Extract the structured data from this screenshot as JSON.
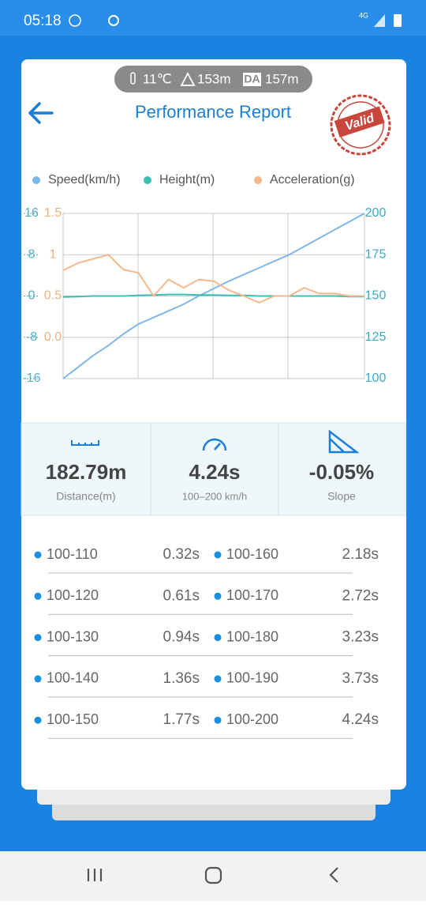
{
  "status_bar": {
    "time": "05:18",
    "network": "4G"
  },
  "conditions": {
    "temperature": "11℃",
    "altitude": "153m",
    "da_label": "DA",
    "density_altitude": "157m"
  },
  "header": {
    "title": "Performance Report",
    "stamp": "Valid"
  },
  "chart_data": {
    "type": "line",
    "series": [
      {
        "name": "Speed(km/h)",
        "color": "#7fb8e8",
        "axis": "y2",
        "values": [
          100,
          107,
          114,
          120,
          127,
          133,
          137,
          141,
          145,
          150,
          154.5,
          159,
          163,
          167,
          171,
          175,
          180,
          185,
          190,
          195,
          200
        ]
      },
      {
        "name": "Height(m)",
        "color": "#3cbfb5",
        "axis": "y",
        "values": [
          -0.2,
          -0.1,
          0,
          0,
          0,
          0.1,
          0.2,
          0.3,
          0.3,
          0.2,
          0.2,
          0.1,
          0.1,
          0,
          0,
          0,
          0,
          0,
          0,
          -0.1,
          -0.1
        ]
      },
      {
        "name": "Acceleration(g)",
        "color": "#f5b88a",
        "axis": "y3",
        "values": [
          0.81,
          0.9,
          0.95,
          1.0,
          0.82,
          0.78,
          0.5,
          0.7,
          0.6,
          0.7,
          0.68,
          0.57,
          0.5,
          0.42,
          0.5,
          0.5,
          0.6,
          0.53,
          0.53,
          0.5,
          0.5
        ]
      }
    ],
    "ylim": [
      -16,
      16
    ],
    "yticks": [
      16,
      8,
      0,
      -8,
      -16
    ],
    "y2lim": [
      100,
      200
    ],
    "y2ticks": [
      200,
      175,
      150,
      125,
      100
    ],
    "y3lim": [
      -0.5,
      1.5
    ],
    "y3ticks": [
      1.5,
      1,
      0.5,
      {
        "value": 0,
        "label": "0.0"
      }
    ],
    "grid": true
  },
  "stats": [
    {
      "value": "182.79m",
      "label": "Distance(m)"
    },
    {
      "value": "4.24s",
      "label": "100–200 km/h"
    },
    {
      "value": "-0.05%",
      "label": "Slope"
    }
  ],
  "splits": [
    {
      "range": "100-110",
      "time": "0.32s"
    },
    {
      "range": "100-160",
      "time": "2.18s"
    },
    {
      "range": "100-120",
      "time": "0.61s"
    },
    {
      "range": "100-170",
      "time": "2.72s"
    },
    {
      "range": "100-130",
      "time": "0.94s"
    },
    {
      "range": "100-180",
      "time": "3.23s"
    },
    {
      "range": "100-140",
      "time": "1.36s"
    },
    {
      "range": "100-190",
      "time": "3.73s"
    },
    {
      "range": "100-150",
      "time": "1.77s"
    },
    {
      "range": "100-200",
      "time": "4.24s"
    }
  ]
}
